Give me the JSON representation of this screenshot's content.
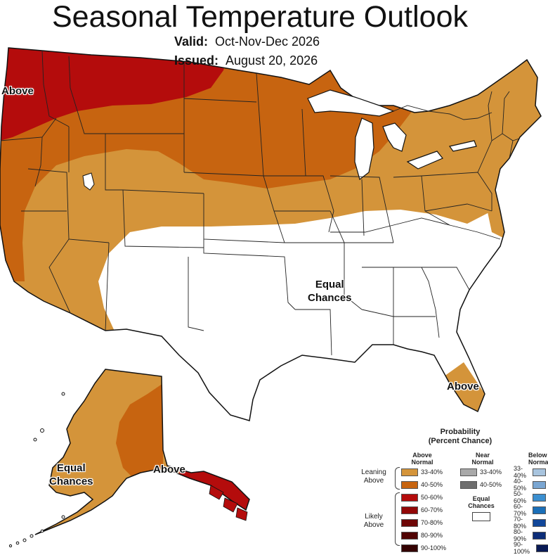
{
  "title": "Seasonal Temperature Outlook",
  "valid": {
    "label": "Valid:",
    "value": "Oct-Nov-Dec 2026"
  },
  "issued": {
    "label": "Issued:",
    "value": "August 20, 2026"
  },
  "map_labels": {
    "above_nw": "Above",
    "equal_central": "Equal\nChances",
    "above_florida": "Above",
    "equal_alaska": "Equal\nChances",
    "above_alaska": "Above"
  },
  "legend": {
    "title": "Probability\n(Percent Chance)",
    "above_header": "Above\nNormal",
    "near_header": "Near\nNormal",
    "below_header": "Below\nNormal",
    "leaning_above": "Leaning\nAbove",
    "likely_above": "Likely\nAbove",
    "equal_chances": "Equal\nChances",
    "above_rows": [
      {
        "label": "33-40%",
        "color": "#d4943a"
      },
      {
        "label": "40-50%",
        "color": "#c76410"
      },
      {
        "label": "50-60%",
        "color": "#b40c0c"
      },
      {
        "label": "60-70%",
        "color": "#920808"
      },
      {
        "label": "70-80%",
        "color": "#6e0606"
      },
      {
        "label": "80-90%",
        "color": "#500404"
      },
      {
        "label": "90-100%",
        "color": "#340202"
      }
    ],
    "near_rows": [
      {
        "label": "33-40%",
        "color": "#a9a9a9"
      },
      {
        "label": "40-50%",
        "color": "#6e6e6e"
      }
    ],
    "below_rows": [
      {
        "label": "33-40%",
        "color": "#a8c4de"
      },
      {
        "label": "40-50%",
        "color": "#7aa6d2"
      },
      {
        "label": "50-60%",
        "color": "#3b8fd0"
      },
      {
        "label": "60-70%",
        "color": "#1b6fb8"
      },
      {
        "label": "70-80%",
        "color": "#11479a"
      },
      {
        "label": "80-90%",
        "color": "#0c2d78"
      },
      {
        "label": "90-100%",
        "color": "#0a1a55"
      }
    ]
  },
  "colors": {
    "leaning_above": "#d4943a",
    "above_40_50": "#c76410",
    "above_50_60": "#b40c0c",
    "equal_chances": "#ffffff"
  }
}
